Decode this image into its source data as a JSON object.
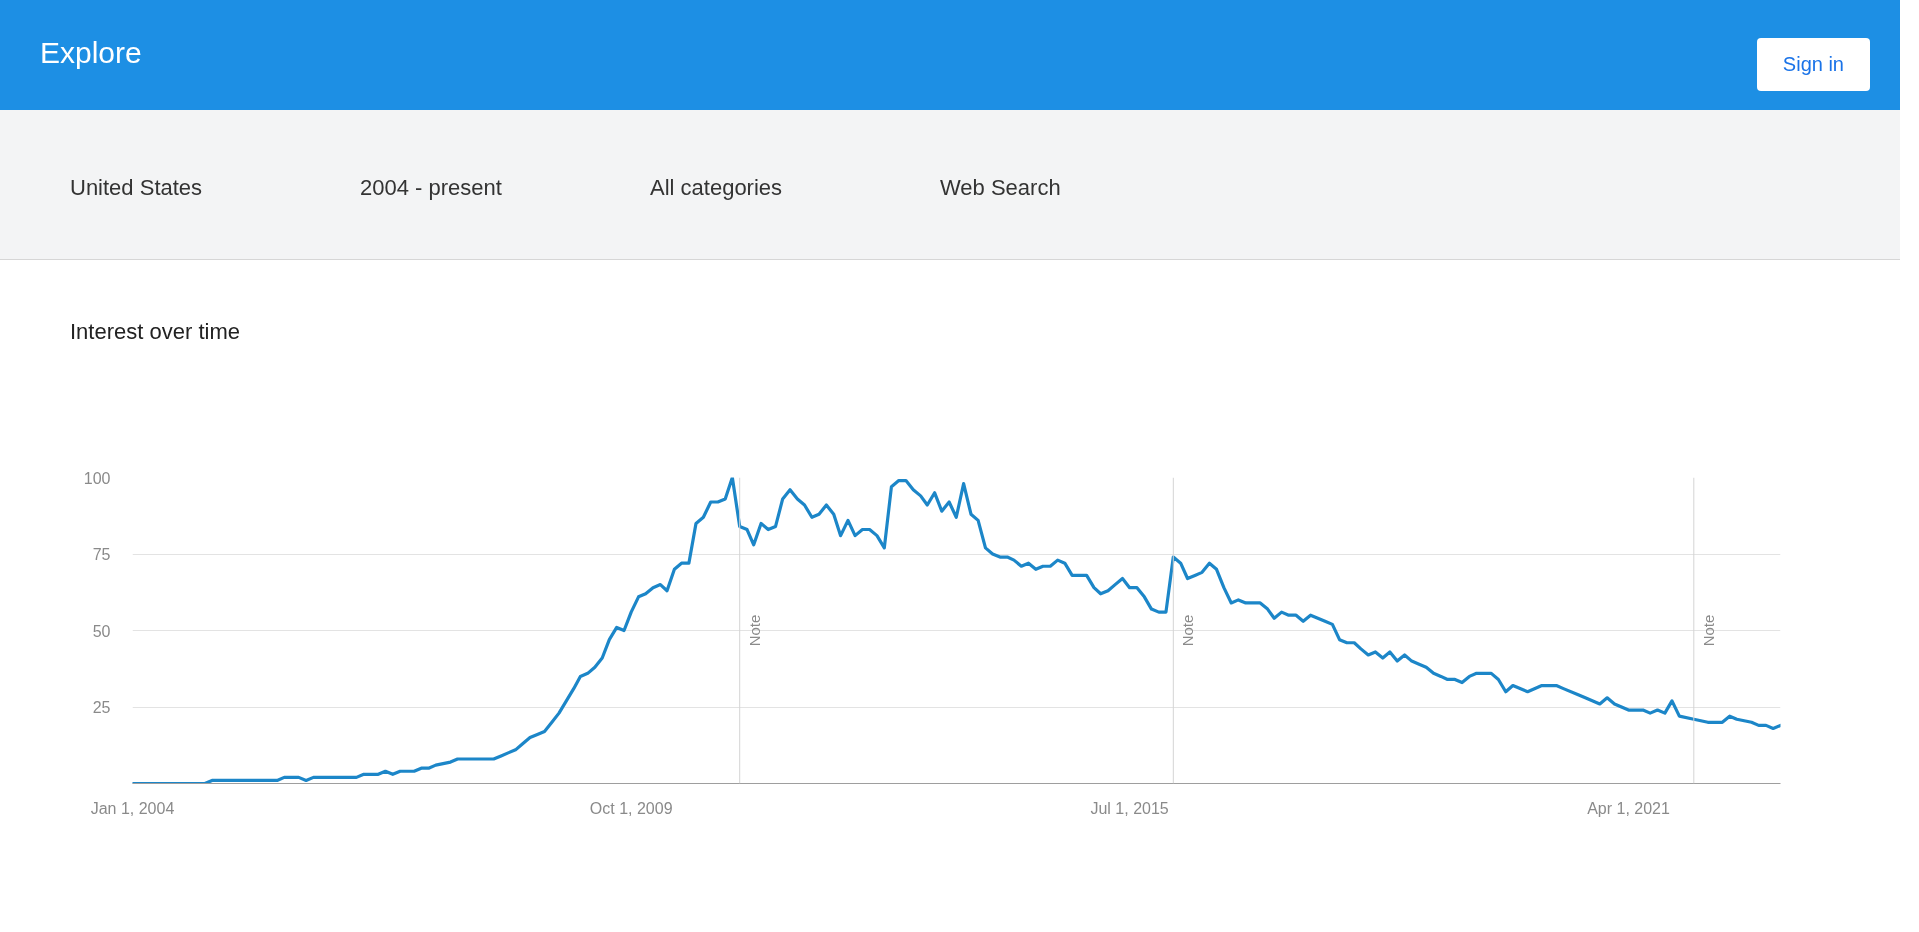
{
  "chart_data": {
    "type": "line",
    "title": "Interest over time",
    "annotations": [
      "Explore",
      "Sign in",
      "United States",
      "2004 - present",
      "All categories",
      "Web Search"
    ],
    "x": [
      "2004-01",
      "2004-11",
      "2004-12",
      "2005-01",
      "2005-09",
      "2005-10",
      "2005-12",
      "2006-01",
      "2006-02",
      "2006-08",
      "2006-09",
      "2006-11",
      "2006-12",
      "2007-01",
      "2007-02",
      "2007-04",
      "2007-05",
      "2007-06",
      "2007-07",
      "2007-09",
      "2007-10",
      "2008-03",
      "2008-04",
      "2008-05",
      "2008-06",
      "2008-07",
      "2008-08",
      "2008-09",
      "2008-10",
      "2008-11",
      "2008-12",
      "2009-01",
      "2009-02",
      "2009-03",
      "2009-04",
      "2009-05",
      "2009-06",
      "2009-07",
      "2009-08",
      "2009-09",
      "2009-10",
      "2009-11",
      "2009-12",
      "2010-01",
      "2010-02",
      "2010-03",
      "2010-04",
      "2010-05",
      "2010-06",
      "2010-07",
      "2010-08",
      "2010-09",
      "2010-10",
      "2010-11",
      "2010-12",
      "2011-01",
      "2011-02",
      "2011-03",
      "2011-04",
      "2011-05",
      "2011-06",
      "2011-07",
      "2011-08",
      "2011-09",
      "2011-10",
      "2011-11",
      "2011-12",
      "2012-01",
      "2012-02",
      "2012-03",
      "2012-04",
      "2012-05",
      "2012-06",
      "2012-07",
      "2012-08",
      "2012-09",
      "2012-10",
      "2012-11",
      "2012-12",
      "2013-01",
      "2013-02",
      "2013-03",
      "2013-04",
      "2013-05",
      "2013-06",
      "2013-07",
      "2013-08",
      "2013-09",
      "2013-10",
      "2013-11",
      "2013-12",
      "2014-01",
      "2014-02",
      "2014-03",
      "2014-04",
      "2014-05",
      "2014-06",
      "2014-07",
      "2014-08",
      "2014-09",
      "2014-10",
      "2014-11",
      "2014-12",
      "2015-01",
      "2015-02",
      "2015-03",
      "2015-04",
      "2015-05",
      "2015-06",
      "2015-07",
      "2015-08",
      "2015-09",
      "2015-10",
      "2015-11",
      "2015-12",
      "2016-01",
      "2016-02",
      "2016-03",
      "2016-04",
      "2016-05",
      "2016-06",
      "2016-07",
      "2016-08",
      "2016-09",
      "2016-10",
      "2016-11",
      "2017-01",
      "2017-02",
      "2017-03",
      "2017-04",
      "2017-05",
      "2017-06",
      "2017-07",
      "2017-08",
      "2017-10",
      "2017-11",
      "2017-12",
      "2018-01",
      "2018-02",
      "2018-03",
      "2018-04",
      "2018-05",
      "2018-06",
      "2018-07",
      "2018-08",
      "2018-09",
      "2018-10",
      "2018-11",
      "2018-12",
      "2019-01",
      "2019-02",
      "2019-03",
      "2019-04",
      "2019-05",
      "2019-06",
      "2019-07",
      "2019-08",
      "2019-09",
      "2019-10",
      "2019-11",
      "2019-12",
      "2020-02",
      "2020-04",
      "2020-05",
      "2020-06",
      "2020-07",
      "2020-09",
      "2020-10",
      "2020-12",
      "2021-01",
      "2021-02",
      "2021-04",
      "2021-06",
      "2021-07",
      "2021-08",
      "2021-09",
      "2021-10",
      "2021-11",
      "2022-01",
      "2022-03",
      "2022-05",
      "2022-06",
      "2022-07",
      "2022-09",
      "2022-10",
      "2022-11",
      "2022-12",
      "2023-01"
    ],
    "values": [
      0,
      0,
      1,
      1,
      1,
      2,
      2,
      1,
      2,
      2,
      3,
      3,
      4,
      3,
      4,
      4,
      5,
      5,
      6,
      7,
      8,
      8,
      9,
      10,
      11,
      13,
      15,
      16,
      17,
      20,
      23,
      27,
      31,
      35,
      36,
      38,
      41,
      47,
      51,
      50,
      56,
      61,
      62,
      64,
      65,
      63,
      70,
      72,
      72,
      85,
      87,
      92,
      92,
      93,
      100,
      84,
      83,
      78,
      85,
      83,
      84,
      93,
      96,
      93,
      91,
      87,
      88,
      91,
      88,
      81,
      86,
      81,
      83,
      83,
      81,
      77,
      97,
      99,
      99,
      96,
      94,
      91,
      95,
      89,
      92,
      87,
      98,
      88,
      86,
      77,
      75,
      74,
      74,
      73,
      71,
      72,
      70,
      71,
      71,
      73,
      72,
      68,
      68,
      68,
      64,
      62,
      63,
      65,
      67,
      64,
      64,
      61,
      57,
      56,
      56,
      74,
      72,
      67,
      68,
      69,
      72,
      70,
      64,
      59,
      60,
      59,
      59,
      57,
      54,
      56,
      55,
      55,
      53,
      55,
      53,
      52,
      47,
      46,
      46,
      44,
      42,
      43,
      41,
      43,
      40,
      42,
      40,
      39,
      38,
      36,
      35,
      34,
      34,
      33,
      35,
      36,
      36,
      36,
      34,
      30,
      32,
      30,
      32,
      32,
      32,
      31,
      29,
      28,
      26,
      28,
      26,
      24,
      24,
      23,
      24,
      23,
      27,
      22,
      21,
      20,
      20,
      22,
      21,
      20,
      19,
      19,
      18,
      19
    ],
    "color": "#1c86c8",
    "line_style": "solid",
    "xlim": [
      "2004-01-01",
      "2023-01-01"
    ],
    "xticks": [
      {
        "value": "2004-01-01",
        "label": "Jan 1, 2004"
      },
      {
        "value": "2009-10-01",
        "label": "Oct 1, 2009"
      },
      {
        "value": "2015-07-01",
        "label": "Jul 1, 2015"
      },
      {
        "value": "2021-04-01",
        "label": "Apr 1, 2021"
      }
    ],
    "ylim": [
      0,
      100
    ],
    "yticks": [
      25,
      50,
      75,
      100
    ],
    "grid": "y",
    "ref_lines": [
      {
        "axis": "x",
        "value": "2011-01-01",
        "label": "Note",
        "color": "#d4d4d4"
      },
      {
        "axis": "x",
        "value": "2016-01-01",
        "label": "Note",
        "color": "#d4d4d4"
      },
      {
        "axis": "x",
        "value": "2022-01-01",
        "label": "Note",
        "color": "#d4d4d4"
      }
    ]
  }
}
